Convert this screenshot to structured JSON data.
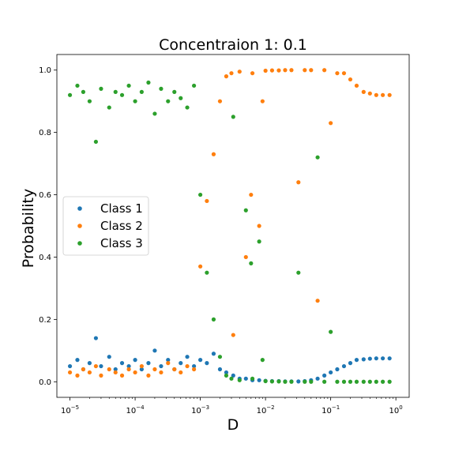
{
  "chart_data": {
    "type": "scatter",
    "title": "Concentraion 1: 0.1",
    "xlabel": "D",
    "ylabel": "Probability",
    "xscale": "log",
    "xlim": [
      6.3e-06,
      1.6
    ],
    "ylim": [
      -0.05,
      1.05
    ],
    "x_ticks": [
      {
        "value": 1e-05,
        "base": "10",
        "exp": "−5"
      },
      {
        "value": 0.0001,
        "base": "10",
        "exp": "−4"
      },
      {
        "value": 0.001,
        "base": "10",
        "exp": "−3"
      },
      {
        "value": 0.01,
        "base": "10",
        "exp": "−2"
      },
      {
        "value": 0.1,
        "base": "10",
        "exp": "−1"
      },
      {
        "value": 1,
        "base": "10",
        "exp": "0"
      }
    ],
    "y_ticks": [
      {
        "value": 0.0,
        "label": "0.0"
      },
      {
        "value": 0.2,
        "label": "0.2"
      },
      {
        "value": 0.4,
        "label": "0.4"
      },
      {
        "value": 0.6,
        "label": "0.6"
      },
      {
        "value": 0.8,
        "label": "0.8"
      },
      {
        "value": 1.0,
        "label": "1.0"
      }
    ],
    "grid": false,
    "legend_position": "center-left",
    "series": [
      {
        "name": "Class 1",
        "color": "#1f77b4",
        "points": [
          [
            1e-05,
            0.05
          ],
          [
            1.3e-05,
            0.07
          ],
          [
            1.6e-05,
            0.04
          ],
          [
            2e-05,
            0.06
          ],
          [
            2.5e-05,
            0.14
          ],
          [
            3e-05,
            0.05
          ],
          [
            4e-05,
            0.08
          ],
          [
            5e-05,
            0.04
          ],
          [
            6.3e-05,
            0.06
          ],
          [
            8e-05,
            0.05
          ],
          [
            0.0001,
            0.07
          ],
          [
            0.000126,
            0.04
          ],
          [
            0.00016,
            0.06
          ],
          [
            0.0002,
            0.1
          ],
          [
            0.00025,
            0.05
          ],
          [
            0.00032,
            0.07
          ],
          [
            0.0004,
            0.04
          ],
          [
            0.0005,
            0.06
          ],
          [
            0.00063,
            0.08
          ],
          [
            0.0008,
            0.05
          ],
          [
            0.001,
            0.07
          ],
          [
            0.00126,
            0.06
          ],
          [
            0.0016,
            0.09
          ],
          [
            0.002,
            0.04
          ],
          [
            0.0025,
            0.03
          ],
          [
            0.0032,
            0.02
          ],
          [
            0.004,
            0.01
          ],
          [
            0.005,
            0.01
          ],
          [
            0.0063,
            0.005
          ],
          [
            0.008,
            0.005
          ],
          [
            0.01,
            0.003
          ],
          [
            0.0126,
            0.002
          ],
          [
            0.016,
            0.002
          ],
          [
            0.02,
            0.001
          ],
          [
            0.025,
            0.001
          ],
          [
            0.032,
            0.001
          ],
          [
            0.04,
            0.002
          ],
          [
            0.05,
            0.005
          ],
          [
            0.063,
            0.01
          ],
          [
            0.08,
            0.02
          ],
          [
            0.1,
            0.03
          ],
          [
            0.126,
            0.04
          ],
          [
            0.16,
            0.05
          ],
          [
            0.2,
            0.06
          ],
          [
            0.25,
            0.07
          ],
          [
            0.32,
            0.072
          ],
          [
            0.4,
            0.074
          ],
          [
            0.5,
            0.075
          ],
          [
            0.63,
            0.075
          ],
          [
            0.8,
            0.075
          ]
        ]
      },
      {
        "name": "Class 2",
        "color": "#ff7f0e",
        "points": [
          [
            1e-05,
            0.03
          ],
          [
            1.3e-05,
            0.02
          ],
          [
            1.6e-05,
            0.04
          ],
          [
            2e-05,
            0.03
          ],
          [
            2.5e-05,
            0.05
          ],
          [
            3e-05,
            0.02
          ],
          [
            4e-05,
            0.04
          ],
          [
            5e-05,
            0.03
          ],
          [
            6.3e-05,
            0.02
          ],
          [
            8e-05,
            0.04
          ],
          [
            0.0001,
            0.03
          ],
          [
            0.000126,
            0.05
          ],
          [
            0.00016,
            0.02
          ],
          [
            0.0002,
            0.04
          ],
          [
            0.00025,
            0.03
          ],
          [
            0.00032,
            0.06
          ],
          [
            0.0004,
            0.04
          ],
          [
            0.0005,
            0.03
          ],
          [
            0.00063,
            0.05
          ],
          [
            0.0008,
            0.04
          ],
          [
            0.001,
            0.37
          ],
          [
            0.00126,
            0.58
          ],
          [
            0.0016,
            0.73
          ],
          [
            0.002,
            0.9
          ],
          [
            0.0025,
            0.98
          ],
          [
            0.003,
            0.99
          ],
          [
            0.0032,
            0.15
          ],
          [
            0.004,
            0.995
          ],
          [
            0.005,
            0.4
          ],
          [
            0.006,
            0.6
          ],
          [
            0.0063,
            0.99
          ],
          [
            0.008,
            0.5
          ],
          [
            0.009,
            0.9
          ],
          [
            0.01,
            0.998
          ],
          [
            0.0126,
            0.999
          ],
          [
            0.016,
            0.999
          ],
          [
            0.02,
            1.0
          ],
          [
            0.025,
            1.0
          ],
          [
            0.032,
            0.64
          ],
          [
            0.04,
            1.0
          ],
          [
            0.05,
            1.0
          ],
          [
            0.063,
            0.26
          ],
          [
            0.08,
            1.0
          ],
          [
            0.1,
            0.83
          ],
          [
            0.126,
            0.99
          ],
          [
            0.16,
            0.99
          ],
          [
            0.2,
            0.97
          ],
          [
            0.25,
            0.95
          ],
          [
            0.32,
            0.93
          ],
          [
            0.4,
            0.925
          ],
          [
            0.5,
            0.92
          ],
          [
            0.63,
            0.92
          ],
          [
            0.8,
            0.92
          ]
        ]
      },
      {
        "name": "Class 3",
        "color": "#2ca02c",
        "points": [
          [
            1e-05,
            0.92
          ],
          [
            1.3e-05,
            0.95
          ],
          [
            1.6e-05,
            0.93
          ],
          [
            2e-05,
            0.9
          ],
          [
            2.5e-05,
            0.77
          ],
          [
            3e-05,
            0.94
          ],
          [
            4e-05,
            0.88
          ],
          [
            5e-05,
            0.93
          ],
          [
            6.3e-05,
            0.92
          ],
          [
            8e-05,
            0.95
          ],
          [
            0.0001,
            0.9
          ],
          [
            0.000126,
            0.93
          ],
          [
            0.00016,
            0.96
          ],
          [
            0.0002,
            0.86
          ],
          [
            0.00025,
            0.94
          ],
          [
            0.00032,
            0.9
          ],
          [
            0.0004,
            0.93
          ],
          [
            0.0005,
            0.91
          ],
          [
            0.00063,
            0.88
          ],
          [
            0.0008,
            0.95
          ],
          [
            0.001,
            0.6
          ],
          [
            0.00126,
            0.35
          ],
          [
            0.0016,
            0.2
          ],
          [
            0.002,
            0.08
          ],
          [
            0.0025,
            0.02
          ],
          [
            0.003,
            0.01
          ],
          [
            0.0032,
            0.85
          ],
          [
            0.004,
            0.005
          ],
          [
            0.005,
            0.55
          ],
          [
            0.006,
            0.38
          ],
          [
            0.0063,
            0.01
          ],
          [
            0.008,
            0.45
          ],
          [
            0.009,
            0.07
          ],
          [
            0.01,
            0.002
          ],
          [
            0.0126,
            0.001
          ],
          [
            0.016,
            0.001
          ],
          [
            0.02,
            0.0
          ],
          [
            0.025,
            0.0
          ],
          [
            0.032,
            0.35
          ],
          [
            0.04,
            0.0
          ],
          [
            0.05,
            0.0
          ],
          [
            0.063,
            0.72
          ],
          [
            0.08,
            0.0
          ],
          [
            0.1,
            0.16
          ],
          [
            0.126,
            0.0
          ],
          [
            0.16,
            0.0
          ],
          [
            0.2,
            0.0
          ],
          [
            0.25,
            0.0
          ],
          [
            0.32,
            0.0
          ],
          [
            0.4,
            0.0
          ],
          [
            0.5,
            0.0
          ],
          [
            0.63,
            0.0
          ],
          [
            0.8,
            0.0
          ]
        ]
      }
    ]
  }
}
